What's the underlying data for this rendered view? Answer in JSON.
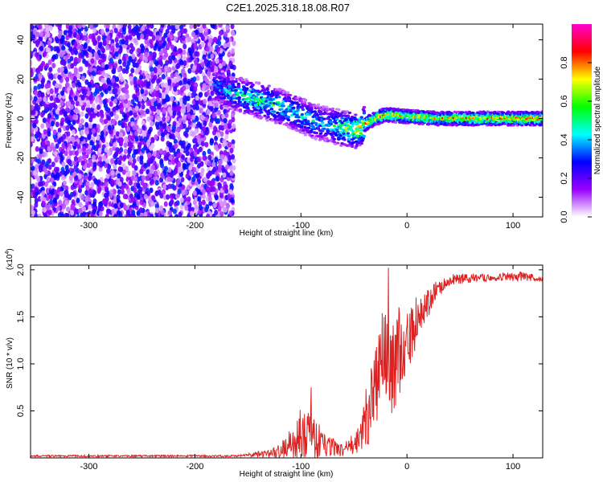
{
  "title": "C2E1.2025.318.18.08.R07",
  "chart_data": [
    {
      "type": "heatmap",
      "xlabel": "Height of straight line (km)",
      "ylabel": "Frequency (Hz)",
      "xlim": [
        -355,
        128
      ],
      "ylim": [
        -50,
        48
      ],
      "xticks": [
        -300,
        -200,
        -100,
        0,
        100
      ],
      "yticks": [
        -40,
        -20,
        0,
        20,
        40
      ],
      "colorbar": {
        "label": "Normalized spectral amplitude",
        "range": [
          0.0,
          1.0
        ],
        "ticks": [
          "0.0",
          "0.2",
          "0.4",
          "0.6",
          "0.8"
        ],
        "colors": [
          "#ffffff",
          "#9900ff",
          "#0000ff",
          "#00ffff",
          "#00ff00",
          "#ffff00",
          "#ff0000",
          "#ff00cc"
        ]
      },
      "noise_region": {
        "x_start": -355,
        "x_end": -163,
        "mean_amplitude": 0.15
      },
      "ridge": [
        {
          "x": -182,
          "y": 17,
          "amp": 0.35
        },
        {
          "x": -165,
          "y": 13,
          "amp": 0.45
        },
        {
          "x": -145,
          "y": 10,
          "amp": 0.55
        },
        {
          "x": -125,
          "y": 7,
          "amp": 0.55
        },
        {
          "x": -105,
          "y": 3,
          "amp": 0.5
        },
        {
          "x": -90,
          "y": -1,
          "amp": 0.45
        },
        {
          "x": -75,
          "y": -3,
          "amp": 0.4
        },
        {
          "x": -60,
          "y": -5,
          "amp": 0.6
        },
        {
          "x": -48,
          "y": -6,
          "amp": 0.7
        },
        {
          "x": -40,
          "y": -3,
          "amp": 0.8
        },
        {
          "x": -30,
          "y": 0,
          "amp": 0.85
        },
        {
          "x": -20,
          "y": 2,
          "amp": 0.8
        },
        {
          "x": 0,
          "y": 1,
          "amp": 0.75
        },
        {
          "x": 30,
          "y": 0,
          "amp": 0.75
        },
        {
          "x": 60,
          "y": 0,
          "amp": 0.8
        },
        {
          "x": 100,
          "y": 0,
          "amp": 0.8
        },
        {
          "x": 128,
          "y": 0,
          "amp": 0.8
        }
      ]
    },
    {
      "type": "line",
      "xlabel": "Height of straight line (km)",
      "ylabel": "SNR (10 * v/v)",
      "y_multiplier": "(x10",
      "y_multiplier_exp": "4",
      "y_multiplier_close": ")",
      "xlim": [
        -355,
        128
      ],
      "ylim": [
        0,
        2.05
      ],
      "xticks": [
        -300,
        -200,
        -100,
        0,
        100
      ],
      "yticks": [
        0.5,
        1.0,
        1.5,
        2.0
      ],
      "series": [
        {
          "color": "#e02020",
          "trend": [
            {
              "x": -355,
              "y": 0.02,
              "spread": 0.01
            },
            {
              "x": -165,
              "y": 0.02,
              "spread": 0.01
            },
            {
              "x": -150,
              "y": 0.03,
              "spread": 0.02
            },
            {
              "x": -130,
              "y": 0.05,
              "spread": 0.04
            },
            {
              "x": -115,
              "y": 0.1,
              "spread": 0.12
            },
            {
              "x": -100,
              "y": 0.2,
              "spread": 0.25
            },
            {
              "x": -90,
              "y": 0.25,
              "spread": 0.3
            },
            {
              "x": -80,
              "y": 0.15,
              "spread": 0.15
            },
            {
              "x": -60,
              "y": 0.08,
              "spread": 0.06
            },
            {
              "x": -45,
              "y": 0.2,
              "spread": 0.15
            },
            {
              "x": -35,
              "y": 0.6,
              "spread": 0.45
            },
            {
              "x": -25,
              "y": 0.9,
              "spread": 0.6
            },
            {
              "x": -15,
              "y": 1.0,
              "spread": 0.55
            },
            {
              "x": -5,
              "y": 1.1,
              "spread": 0.45
            },
            {
              "x": 5,
              "y": 1.3,
              "spread": 0.3
            },
            {
              "x": 15,
              "y": 1.55,
              "spread": 0.2
            },
            {
              "x": 25,
              "y": 1.75,
              "spread": 0.12
            },
            {
              "x": 40,
              "y": 1.9,
              "spread": 0.06
            },
            {
              "x": 80,
              "y": 1.92,
              "spread": 0.04
            },
            {
              "x": 110,
              "y": 1.93,
              "spread": 0.05
            },
            {
              "x": 128,
              "y": 1.9,
              "spread": 0.03
            }
          ]
        }
      ]
    }
  ]
}
